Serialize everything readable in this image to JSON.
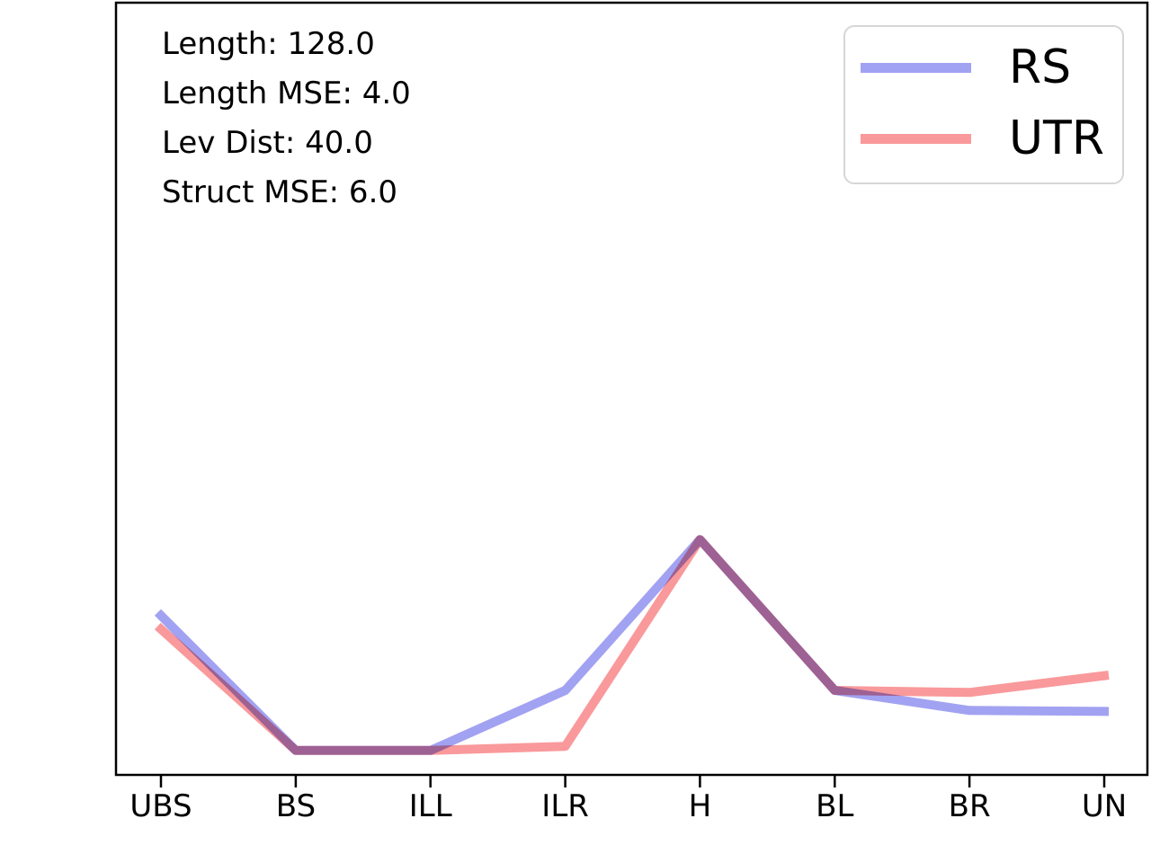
{
  "chart_data": {
    "type": "line",
    "categories": [
      "UBS",
      "BS",
      "ILL",
      "ILR",
      "H",
      "BL",
      "BR",
      "UN"
    ],
    "series": [
      {
        "name": "RS",
        "color": "#a2a2f2",
        "values": [
          0.64,
          0.0,
          0.0,
          0.285,
          1.0,
          0.285,
          0.19,
          0.185
        ]
      },
      {
        "name": "UTR",
        "color": "#f9999b",
        "values": [
          0.575,
          0.0,
          0.0,
          0.02,
          1.0,
          0.285,
          0.275,
          0.355
        ]
      }
    ],
    "title": "",
    "xlabel": "",
    "ylabel": "",
    "ylim": [
      -0.12,
      3.55
    ],
    "grid": false,
    "y_ticks_visible": false,
    "legend": {
      "position": "upper right",
      "entries": [
        {
          "label": "RS",
          "color": "#a2a2f2"
        },
        {
          "label": "UTR",
          "color": "#f9999b"
        }
      ]
    },
    "annotations": [
      "Length: 128.0",
      "Length MSE: 4.0",
      "Lev Dist: 40.0",
      "Struct MSE: 6.0"
    ],
    "axis_color": "#000000",
    "note": "y-axis unlabeled; series values normalized so the peak at H equals 1.0"
  }
}
